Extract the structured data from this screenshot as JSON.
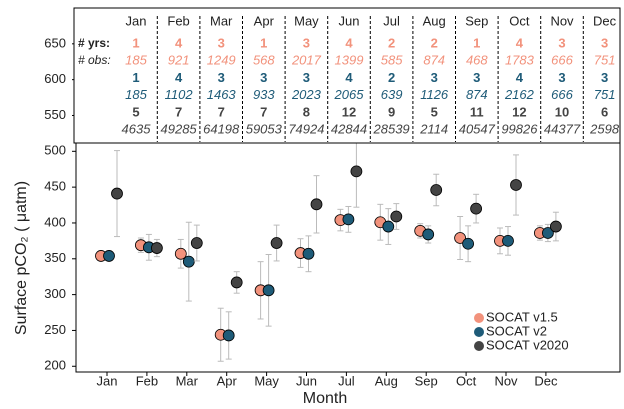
{
  "chart_data": {
    "type": "errorbar",
    "x_label": "Month",
    "y_label": "Surface pCO₂ ( μatm)",
    "categories": [
      "Jan",
      "Feb",
      "Mar",
      "Apr",
      "May",
      "Jun",
      "Jul",
      "Aug",
      "Sep",
      "Oct",
      "Nov",
      "Dec"
    ],
    "ylim": [
      192,
      700
    ],
    "yticks": [
      200,
      250,
      300,
      350,
      400,
      450,
      500,
      550,
      600,
      650
    ],
    "legend": "lower right",
    "yrs_label": "# yrs:",
    "obs_label": "# obs:",
    "series": [
      {
        "name": "SOCAT v1.5",
        "color": "#f2927c",
        "values": [
          354,
          369,
          357,
          244,
          306,
          358,
          404,
          401,
          389,
          379,
          375,
          386
        ],
        "errors": [
          5,
          10,
          20,
          37,
          40,
          20,
          15,
          25,
          10,
          30,
          18,
          10
        ],
        "years": [
          1,
          4,
          3,
          1,
          3,
          4,
          2,
          2,
          1,
          4,
          3,
          3
        ],
        "obs": [
          185,
          921,
          1249,
          568,
          2017,
          1399,
          585,
          874,
          468,
          1783,
          666,
          751
        ]
      },
      {
        "name": "SOCAT v2",
        "color": "#1e5b78",
        "values": [
          354,
          366,
          346,
          243,
          306,
          357,
          405,
          395,
          384,
          371,
          375,
          386
        ],
        "errors": [
          5,
          18,
          55,
          33,
          50,
          25,
          18,
          25,
          12,
          25,
          20,
          12
        ],
        "years": [
          1,
          4,
          3,
          3,
          3,
          4,
          2,
          3,
          3,
          4,
          3,
          3
        ],
        "obs": [
          185,
          1102,
          1463,
          933,
          2023,
          2065,
          639,
          1126,
          874,
          2162,
          666,
          751
        ]
      },
      {
        "name": "SOCAT v2020",
        "color": "#444444",
        "values": [
          441,
          365,
          372,
          317,
          372,
          426,
          472,
          409,
          446,
          420,
          453,
          395
        ],
        "errors": [
          60,
          12,
          25,
          15,
          25,
          40,
          50,
          18,
          22,
          20,
          42,
          20
        ],
        "years": [
          5,
          7,
          7,
          7,
          8,
          12,
          9,
          5,
          11,
          12,
          10,
          6
        ],
        "obs": [
          4635,
          49285,
          64198,
          59053,
          74924,
          42844,
          28539,
          2114,
          40547,
          99826,
          44377,
          2598
        ]
      }
    ]
  }
}
